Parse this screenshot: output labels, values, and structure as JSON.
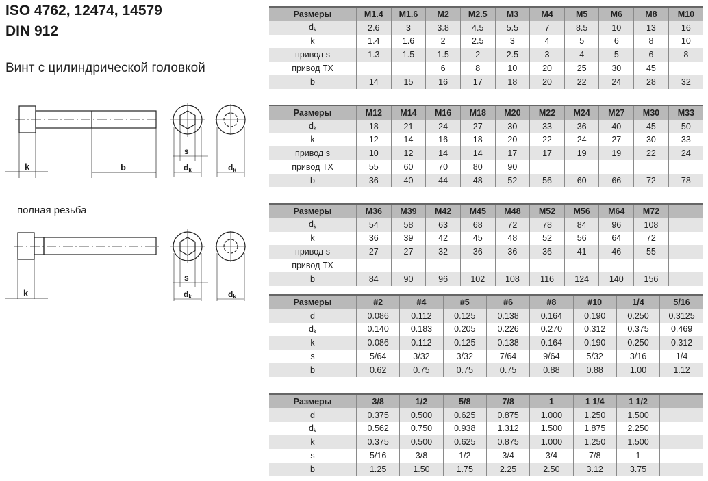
{
  "header": {
    "title_line1": "ISO 4762, 12474, 14579",
    "title_line2": "DIN 912",
    "subtitle": "Винт с цилиндрической головкой",
    "full_thread_caption": "полная резьба"
  },
  "drawing": {
    "labels": {
      "k": "k",
      "b": "b",
      "s": "s",
      "dk_main": "d",
      "dk_sub": "k"
    }
  },
  "colors": {
    "header_bg": "#b9b9b9",
    "alt_row_bg": "#e4e4e4"
  },
  "tables": [
    {
      "header": [
        "Размеры",
        "M1.4",
        "M1.6",
        "M2",
        "M2.5",
        "M3",
        "M4",
        "M5",
        "M6",
        "M8",
        "M10"
      ],
      "rows": [
        {
          "label": "d",
          "sub": "k",
          "values": [
            "2.6",
            "3",
            "3.8",
            "4.5",
            "5.5",
            "7",
            "8.5",
            "10",
            "13",
            "16"
          ]
        },
        {
          "label": "k",
          "values": [
            "1.4",
            "1.6",
            "2",
            "2.5",
            "3",
            "4",
            "5",
            "6",
            "8",
            "10"
          ]
        },
        {
          "label": "привод s",
          "values": [
            "1.3",
            "1.5",
            "1.5",
            "2",
            "2.5",
            "3",
            "4",
            "5",
            "6",
            "8"
          ]
        },
        {
          "label": "привод TX",
          "values": [
            "",
            "",
            "6",
            "8",
            "10",
            "20",
            "25",
            "30",
            "45",
            ""
          ]
        },
        {
          "label": "b",
          "values": [
            "14",
            "15",
            "16",
            "17",
            "18",
            "20",
            "22",
            "24",
            "28",
            "32"
          ]
        }
      ]
    },
    {
      "header": [
        "Размеры",
        "M12",
        "M14",
        "M16",
        "M18",
        "M20",
        "M22",
        "M24",
        "M27",
        "M30",
        "M33"
      ],
      "rows": [
        {
          "label": "d",
          "sub": "k",
          "values": [
            "18",
            "21",
            "24",
            "27",
            "30",
            "33",
            "36",
            "40",
            "45",
            "50"
          ]
        },
        {
          "label": "k",
          "values": [
            "12",
            "14",
            "16",
            "18",
            "20",
            "22",
            "24",
            "27",
            "30",
            "33"
          ]
        },
        {
          "label": "привод s",
          "values": [
            "10",
            "12",
            "14",
            "14",
            "17",
            "17",
            "19",
            "19",
            "22",
            "24"
          ]
        },
        {
          "label": "привод TX",
          "values": [
            "55",
            "60",
            "70",
            "80",
            "90",
            "",
            "",
            "",
            "",
            ""
          ]
        },
        {
          "label": "b",
          "values": [
            "36",
            "40",
            "44",
            "48",
            "52",
            "56",
            "60",
            "66",
            "72",
            "78"
          ]
        }
      ]
    },
    {
      "header": [
        "Размеры",
        "M36",
        "M39",
        "M42",
        "M45",
        "M48",
        "M52",
        "M56",
        "M64",
        "M72",
        ""
      ],
      "rows": [
        {
          "label": "d",
          "sub": "k",
          "values": [
            "54",
            "58",
            "63",
            "68",
            "72",
            "78",
            "84",
            "96",
            "108",
            ""
          ]
        },
        {
          "label": "k",
          "values": [
            "36",
            "39",
            "42",
            "45",
            "48",
            "52",
            "56",
            "64",
            "72",
            ""
          ]
        },
        {
          "label": "привод s",
          "values": [
            "27",
            "27",
            "32",
            "36",
            "36",
            "36",
            "41",
            "46",
            "55",
            ""
          ]
        },
        {
          "label": "привод TX",
          "values": [
            "",
            "",
            "",
            "",
            "",
            "",
            "",
            "",
            "",
            ""
          ]
        },
        {
          "label": "b",
          "values": [
            "84",
            "90",
            "96",
            "102",
            "108",
            "116",
            "124",
            "140",
            "156",
            ""
          ]
        }
      ]
    },
    {
      "header": [
        "Размеры",
        "#2",
        "#4",
        "#5",
        "#6",
        "#8",
        "#10",
        "1/4",
        "5/16"
      ],
      "rows": [
        {
          "label": "d",
          "values": [
            "0.086",
            "0.112",
            "0.125",
            "0.138",
            "0.164",
            "0.190",
            "0.250",
            "0.3125"
          ]
        },
        {
          "label": "d",
          "sub": "k",
          "values": [
            "0.140",
            "0.183",
            "0.205",
            "0.226",
            "0.270",
            "0.312",
            "0.375",
            "0.469"
          ]
        },
        {
          "label": "k",
          "values": [
            "0.086",
            "0.112",
            "0.125",
            "0.138",
            "0.164",
            "0.190",
            "0.250",
            "0.312"
          ]
        },
        {
          "label": "s",
          "values": [
            "5/64",
            "3/32",
            "3/32",
            "7/64",
            "9/64",
            "5/32",
            "3/16",
            "1/4"
          ]
        },
        {
          "label": "b",
          "values": [
            "0.62",
            "0.75",
            "0.75",
            "0.75",
            "0.88",
            "0.88",
            "1.00",
            "1.12"
          ]
        }
      ]
    },
    {
      "header": [
        "Размеры",
        "3/8",
        "1/2",
        "5/8",
        "7/8",
        "1",
        "1 1/4",
        "1 1/2",
        ""
      ],
      "rows": [
        {
          "label": "d",
          "values": [
            "0.375",
            "0.500",
            "0.625",
            "0.875",
            "1.000",
            "1.250",
            "1.500",
            ""
          ]
        },
        {
          "label": "d",
          "sub": "k",
          "values": [
            "0.562",
            "0.750",
            "0.938",
            "1.312",
            "1.500",
            "1.875",
            "2.250",
            ""
          ]
        },
        {
          "label": "k",
          "values": [
            "0.375",
            "0.500",
            "0.625",
            "0.875",
            "1.000",
            "1.250",
            "1.500",
            ""
          ]
        },
        {
          "label": "s",
          "values": [
            "5/16",
            "3/8",
            "1/2",
            "3/4",
            "3/4",
            "7/8",
            "1",
            ""
          ]
        },
        {
          "label": "b",
          "values": [
            "1.25",
            "1.50",
            "1.75",
            "2.25",
            "2.50",
            "3.12",
            "3.75",
            ""
          ]
        }
      ]
    }
  ]
}
